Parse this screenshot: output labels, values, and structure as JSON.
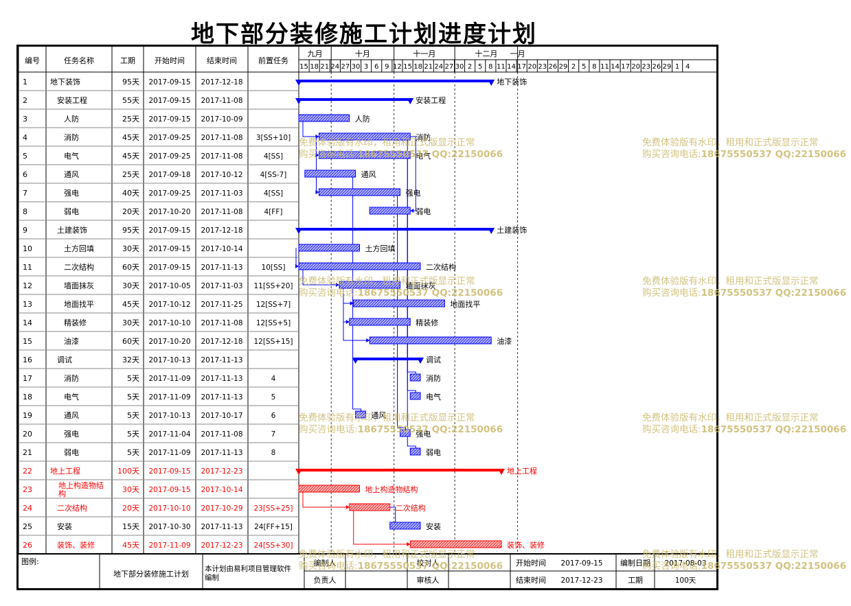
{
  "title": "地下部分装修施工计划进度计划",
  "headers": [
    "编号",
    "任务名称",
    "工期",
    "开始时间",
    "结束时间",
    "前置任务"
  ],
  "months": [
    "九月",
    "十月",
    "十一月",
    "十二月",
    "一月"
  ],
  "days": [
    "15",
    "18",
    "21",
    "24",
    "27",
    "30",
    "3",
    "6",
    "9",
    "12",
    "15",
    "18",
    "21",
    "24",
    "27",
    "30",
    "2",
    "5",
    "8",
    "11",
    "14",
    "17",
    "20",
    "23",
    "26",
    "29",
    "2",
    "5",
    "8",
    "11",
    "14",
    "17",
    "20",
    "23",
    "26",
    "29",
    "1",
    "4"
  ],
  "colors": {
    "normal": "#0000ff",
    "critical": "#ff0000",
    "text": "#000000"
  },
  "tasks": [
    {
      "id": "1",
      "name": "地下装饰",
      "dur": "95天",
      "start": "2017-09-15",
      "end": "2017-12-18",
      "pred": "",
      "level": 0,
      "summary": true,
      "red": false,
      "label": "地下装饰"
    },
    {
      "id": "2",
      "name": "安装工程",
      "dur": "55天",
      "start": "2017-09-15",
      "end": "2017-11-08",
      "pred": "",
      "level": 1,
      "summary": true,
      "red": false,
      "label": "安装工程"
    },
    {
      "id": "3",
      "name": "人防",
      "dur": "25天",
      "start": "2017-09-15",
      "end": "2017-10-09",
      "pred": "",
      "level": 2,
      "summary": false,
      "red": false,
      "label": "人防"
    },
    {
      "id": "4",
      "name": "消防",
      "dur": "45天",
      "start": "2017-09-25",
      "end": "2017-11-08",
      "pred": "3[SS+10]",
      "level": 2,
      "summary": false,
      "red": false,
      "label": "消防"
    },
    {
      "id": "5",
      "name": "电气",
      "dur": "45天",
      "start": "2017-09-25",
      "end": "2017-11-08",
      "pred": "4[SS]",
      "level": 2,
      "summary": false,
      "red": false,
      "label": "电气"
    },
    {
      "id": "6",
      "name": "通风",
      "dur": "25天",
      "start": "2017-09-18",
      "end": "2017-10-12",
      "pred": "4[SS-7]",
      "level": 2,
      "summary": false,
      "red": false,
      "label": "通风"
    },
    {
      "id": "7",
      "name": "强电",
      "dur": "40天",
      "start": "2017-09-25",
      "end": "2017-11-03",
      "pred": "4[SS]",
      "level": 2,
      "summary": false,
      "red": false,
      "label": "强电"
    },
    {
      "id": "8",
      "name": "弱电",
      "dur": "20天",
      "start": "2017-10-20",
      "end": "2017-11-08",
      "pred": "4[FF]",
      "level": 2,
      "summary": false,
      "red": false,
      "label": "弱电"
    },
    {
      "id": "9",
      "name": "土建装饰",
      "dur": "95天",
      "start": "2017-09-15",
      "end": "2017-12-18",
      "pred": "",
      "level": 1,
      "summary": true,
      "red": false,
      "label": "土建装饰"
    },
    {
      "id": "10",
      "name": "土方回填",
      "dur": "30天",
      "start": "2017-09-15",
      "end": "2017-10-14",
      "pred": "",
      "level": 2,
      "summary": false,
      "red": false,
      "label": "土方回填"
    },
    {
      "id": "11",
      "name": "二次结构",
      "dur": "60天",
      "start": "2017-09-15",
      "end": "2017-11-13",
      "pred": "10[SS]",
      "level": 2,
      "summary": false,
      "red": false,
      "label": "二次结构"
    },
    {
      "id": "12",
      "name": "墙面抹灰",
      "dur": "30天",
      "start": "2017-10-05",
      "end": "2017-11-03",
      "pred": "11[SS+20]",
      "level": 2,
      "summary": false,
      "red": false,
      "label": "墙面抹灰"
    },
    {
      "id": "13",
      "name": "地面找平",
      "dur": "45天",
      "start": "2017-10-12",
      "end": "2017-11-25",
      "pred": "12[SS+7]",
      "level": 2,
      "summary": false,
      "red": false,
      "label": "地面找平"
    },
    {
      "id": "14",
      "name": "精装修",
      "dur": "30天",
      "start": "2017-10-10",
      "end": "2017-11-08",
      "pred": "12[SS+5]",
      "level": 2,
      "summary": false,
      "red": false,
      "label": "精装修"
    },
    {
      "id": "15",
      "name": "油漆",
      "dur": "60天",
      "start": "2017-10-20",
      "end": "2017-12-18",
      "pred": "12[SS+15]",
      "level": 2,
      "summary": false,
      "red": false,
      "label": "油漆"
    },
    {
      "id": "16",
      "name": "调试",
      "dur": "32天",
      "start": "2017-10-13",
      "end": "2017-11-13",
      "pred": "",
      "level": 1,
      "summary": true,
      "red": false,
      "label": "调试"
    },
    {
      "id": "17",
      "name": "消防",
      "dur": "5天",
      "start": "2017-11-09",
      "end": "2017-11-13",
      "pred": "4",
      "level": 2,
      "summary": false,
      "red": false,
      "label": "消防"
    },
    {
      "id": "18",
      "name": "电气",
      "dur": "5天",
      "start": "2017-11-09",
      "end": "2017-11-13",
      "pred": "5",
      "level": 2,
      "summary": false,
      "red": false,
      "label": "电气"
    },
    {
      "id": "19",
      "name": "通风",
      "dur": "5天",
      "start": "2017-10-13",
      "end": "2017-10-17",
      "pred": "6",
      "level": 2,
      "summary": false,
      "red": false,
      "label": "通风"
    },
    {
      "id": "20",
      "name": "强电",
      "dur": "5天",
      "start": "2017-11-04",
      "end": "2017-11-08",
      "pred": "7",
      "level": 2,
      "summary": false,
      "red": false,
      "label": "强电"
    },
    {
      "id": "21",
      "name": "弱电",
      "dur": "5天",
      "start": "2017-11-09",
      "end": "2017-11-13",
      "pred": "8",
      "level": 2,
      "summary": false,
      "red": false,
      "label": "弱电"
    },
    {
      "id": "22",
      "name": "地上工程",
      "dur": "100天",
      "start": "2017-09-15",
      "end": "2017-12-23",
      "pred": "",
      "level": 0,
      "summary": true,
      "red": true,
      "label": "地上工程"
    },
    {
      "id": "23",
      "name": "地上构造物结构",
      "dur": "30天",
      "start": "2017-09-15",
      "end": "2017-10-14",
      "pred": "",
      "level": 1,
      "summary": false,
      "red": true,
      "label": "地上构造物结构"
    },
    {
      "id": "24",
      "name": "二次结构",
      "dur": "20天",
      "start": "2017-10-10",
      "end": "2017-10-29",
      "pred": "23[SS+25]",
      "level": 1,
      "summary": false,
      "red": true,
      "label": "二次结构"
    },
    {
      "id": "25",
      "name": "安装",
      "dur": "15天",
      "start": "2017-10-30",
      "end": "2017-11-13",
      "pred": "24[FF+15]",
      "level": 1,
      "summary": false,
      "red": false,
      "label": "安装"
    },
    {
      "id": "26",
      "name": "装饰、装修",
      "dur": "45天",
      "start": "2017-11-09",
      "end": "2017-12-23",
      "pred": "24[SS+30]",
      "level": 1,
      "summary": false,
      "red": true,
      "label": "装饰、装修"
    }
  ],
  "footer": {
    "legend": "图例:",
    "project": "地下部分装修施工计划",
    "note": "本计划由易利项目管理软件编制",
    "compiler": "编制人",
    "checker": "校对人",
    "owner": "负责人",
    "reviewer": "审核人",
    "start_label": "开始时间",
    "start_value": "2017-09-15",
    "end_label": "结束时间",
    "end_value": "2017-12-23",
    "date_label": "编制日期",
    "date_value": "2017-08-03",
    "duration_label": "工期",
    "duration_value": "100天"
  },
  "watermark": {
    "line1": "免费体验版有水印，租用和正式版显示正常",
    "line2_prefix": "购买咨询电话:",
    "line2_bold": "18675550537 QQ:22150066"
  }
}
